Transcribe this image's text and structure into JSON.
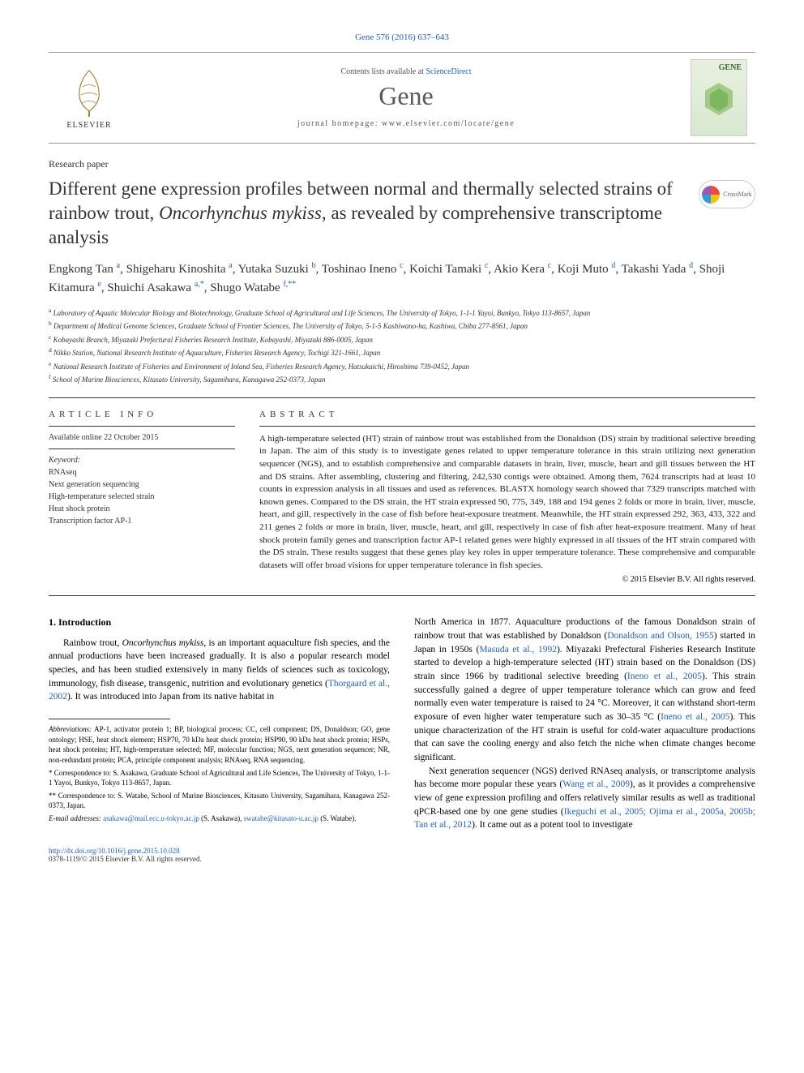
{
  "top_link": "Gene 576 (2016) 637–643",
  "header": {
    "contents_prefix": "Contents lists available at ",
    "contents_link": "ScienceDirect",
    "journal": "Gene",
    "homepage": "journal homepage: www.elsevier.com/locate/gene",
    "elsevier_label": "ELSEVIER",
    "cover_title": "GENE"
  },
  "paper_type": "Research paper",
  "title_pre": "Different gene expression profiles between normal and thermally selected strains of rainbow trout, ",
  "title_italic": "Oncorhynchus mykiss",
  "title_post": ", as revealed by comprehensive transcriptome analysis",
  "crossmark_label": "CrossMark",
  "authors_html": "Engkong Tan <sup>a</sup>, Shigeharu Kinoshita <sup>a</sup>, Yutaka Suzuki <sup>b</sup>, Toshinao Ineno <sup>c</sup>, Koichi Tamaki <sup>c</sup>, Akio Kera <sup>c</sup>, Koji Muto <sup>d</sup>, Takashi Yada <sup>d</sup>, Shoji Kitamura <sup>e</sup>, Shuichi Asakawa <sup>a,*</sup>, Shugo Watabe <sup>f,**</sup>",
  "affiliations": [
    {
      "sup": "a",
      "text": "Laboratory of Aquatic Molecular Biology and Biotechnology, Graduate School of Agricultural and Life Sciences, The University of Tokyo, 1-1-1 Yayoi, Bunkyo, Tokyo 113-8657, Japan"
    },
    {
      "sup": "b",
      "text": "Department of Medical Genome Sciences, Graduate School of Frontier Sciences, The University of Tokyo, 5-1-5 Kashiwano-ha, Kashiwa, Chiba 277-8561, Japan"
    },
    {
      "sup": "c",
      "text": "Kobayashi Branch, Miyazaki Prefectural Fisheries Research Institute, Kobayashi, Miyazaki 886-0005, Japan"
    },
    {
      "sup": "d",
      "text": "Nikko Station, National Research Institute of Aquaculture, Fisheries Research Agency, Tochigi 321-1661, Japan"
    },
    {
      "sup": "e",
      "text": "National Research Institute of Fisheries and Environment of Inland Sea, Fisheries Research Agency, Hatsukaichi, Hiroshima 739-0452, Japan"
    },
    {
      "sup": "f",
      "text": "School of Marine Biosciences, Kitasato University, Sagamihara, Kanagawa 252-0373, Japan"
    }
  ],
  "article_info": {
    "heading": "article info",
    "available": "Available online 22 October 2015",
    "kw_heading": "Keyword:",
    "keywords": "RNAseq\nNext generation sequencing\nHigh-temperature selected strain\nHeat shock protein\nTranscription factor AP-1"
  },
  "abstract": {
    "heading": "abstract",
    "text": "A high-temperature selected (HT) strain of rainbow trout was established from the Donaldson (DS) strain by traditional selective breeding in Japan. The aim of this study is to investigate genes related to upper temperature tolerance in this strain utilizing next generation sequencer (NGS), and to establish comprehensive and comparable datasets in brain, liver, muscle, heart and gill tissues between the HT and DS strains. After assembling, clustering and filtering, 242,530 contigs were obtained. Among them, 7624 transcripts had at least 10 counts in expression analysis in all tissues and used as references. BLASTX homology search showed that 7329 transcripts matched with known genes. Compared to the DS strain, the HT strain expressed 90, 775, 349, 188 and 194 genes 2 folds or more in brain, liver, muscle, heart, and gill, respectively in the case of fish before heat-exposure treatment. Meanwhile, the HT strain expressed 292, 363, 433, 322 and 211 genes 2 folds or more in brain, liver, muscle, heart, and gill, respectively in case of fish after heat-exposure treatment. Many of heat shock protein family genes and transcription factor AP-1 related genes were highly expressed in all tissues of the HT strain compared with the DS strain. These results suggest that these genes play key roles in upper temperature tolerance. These comprehensive and comparable datasets will offer broad visions for upper temperature tolerance in fish species.",
    "copyright": "© 2015 Elsevier B.V. All rights reserved."
  },
  "body": {
    "intro_heading": "1. Introduction",
    "left_p1_a": "Rainbow trout, ",
    "left_p1_italic": "Oncorhynchus mykiss",
    "left_p1_b": ", is an important aquaculture fish species, and the annual productions have been increased gradually. It is also a popular research model species, and has been studied extensively in many fields of sciences such as toxicology, immunology, fish disease, transgenic, nutrition and evolutionary genetics (",
    "left_p1_cite": "Thorgaard et al., 2002",
    "left_p1_c": "). It was introduced into Japan from its native habitat in",
    "right_p1_a": "North America in 1877. Aquaculture productions of the famous Donaldson strain of rainbow trout that was established by Donaldson (",
    "right_p1_cite1": "Donaldson and Olson, 1955",
    "right_p1_b": ") started in Japan in 1950s (",
    "right_p1_cite2": "Masuda et al., 1992",
    "right_p1_c": "). Miyazaki Prefectural Fisheries Research Institute started to develop a high-temperature selected (HT) strain based on the Donaldson (DS) strain since 1966 by traditional selective breeding (",
    "right_p1_cite3": "Ineno et al., 2005",
    "right_p1_d": "). This strain successfully gained a degree of upper temperature tolerance which can grow and feed normally even water temperature is raised to 24 °C. Moreover, it can withstand short-term exposure of even higher water temperature such as 30–35 °C (",
    "right_p1_cite4": "Ineno et al., 2005",
    "right_p1_e": "). This unique characterization of the HT strain is useful for cold-water aquaculture productions that can save the cooling energy and also fetch the niche when climate changes become significant.",
    "right_p2_a": "Next generation sequencer (NGS) derived RNAseq analysis, or transcriptome analysis has become more popular these years (",
    "right_p2_cite1": "Wang et al., 2009",
    "right_p2_b": "), as it provides a comprehensive view of gene expression profiling and offers relatively similar results as well as traditional qPCR-based one by one gene studies (",
    "right_p2_cite2": "Ikeguchi et al., 2005; Ojima et al., 2005a, 2005b; Tan et al., 2012",
    "right_p2_c": "). It came out as a potent tool to investigate"
  },
  "footnotes": {
    "abbrev_label": "Abbreviations:",
    "abbrev_text": " AP-1, activator protein 1; BP, biological process; CC, cell component; DS, Donaldson; GO, gene ontology; HSE, heat shock element; HSP70, 70 kDa heat shock protein; HSP90, 90 kDa heat shock protein; HSPs, heat shock proteins; HT, high-temperature selected; MF, molecular function; NGS, next generation sequencer; NR, non-redundant protein; PCA, principle component analysis; RNAseq, RNA sequencing.",
    "corr1": "* Correspondence to: S. Asakawa, Graduate School of Agricultural and Life Sciences, The University of Tokyo, 1-1-1 Yayoi, Bunkyo, Tokyo 113-8657, Japan.",
    "corr2": "** Correspondence to: S. Watabe, School of Marine Biosciences, Kitasato University, Sagamihara, Kanagawa 252-0373, Japan.",
    "email_label": "E-mail addresses: ",
    "email1": "asakawa@mail.ecc.u-tokyo.ac.jp",
    "email1_who": " (S. Asakawa), ",
    "email2": "swatabe@kitasato-u.ac.jp",
    "email2_who": " (S. Watabe)."
  },
  "footer": {
    "doi": "http://dx.doi.org/10.1016/j.gene.2015.10.028",
    "issn": "0378-1119/© 2015 Elsevier B.V. All rights reserved."
  },
  "colors": {
    "link": "#2060c0",
    "text": "#000000",
    "heading_gray": "#5a5a5a",
    "rule": "#333333"
  }
}
